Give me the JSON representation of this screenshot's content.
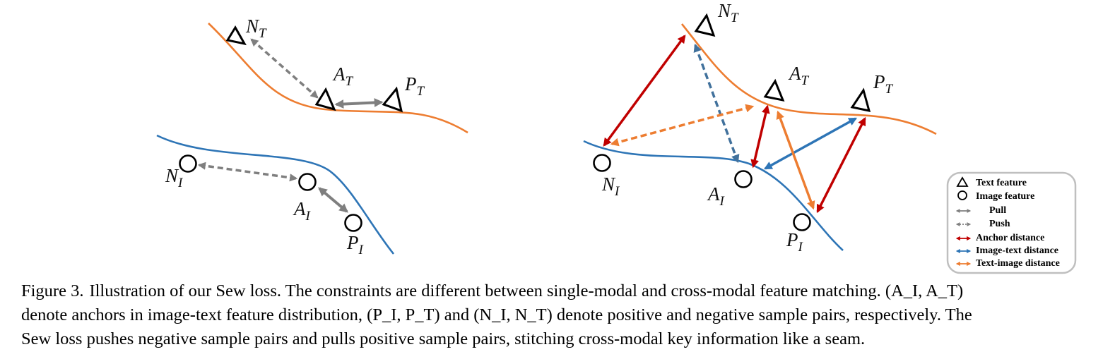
{
  "figure": {
    "points": {
      "nt": {
        "base": "N",
        "sub": "T"
      },
      "at": {
        "base": "A",
        "sub": "T"
      },
      "pt": {
        "base": "P",
        "sub": "T"
      },
      "ni": {
        "base": "N",
        "sub": "I"
      },
      "ai": {
        "base": "A",
        "sub": "I"
      },
      "pi": {
        "base": "P",
        "sub": "I"
      }
    },
    "legend": {
      "text_feature": "Text feature",
      "image_feature": "Image feature",
      "pull": "Pull",
      "push": "Push",
      "anchor_distance": "Anchor distance",
      "image_text_distance": "Image-text distance",
      "text_image_distance": "Text-image distance"
    },
    "colors": {
      "text_curve": "#ed7d31",
      "image_curve": "#2e75b6",
      "gray": "#7f7f7f",
      "anchor": "#c00000",
      "image_text": "#2e75b6",
      "text_image": "#ed7d31"
    }
  },
  "caption": {
    "label": "Figure 3.",
    "line1": "Illustration of our Sew loss.  The constraints are different between single-modal and cross-modal feature matching.  (A_I, A_T)",
    "line2": "denote anchors in image-text feature distribution, (P_I, P_T) and (N_I, N_T) denote positive and negative sample pairs, respectively.  The",
    "line3": "Sew loss pushes negative sample pairs and pulls positive sample pairs, stitching cross-modal key information like a seam."
  }
}
